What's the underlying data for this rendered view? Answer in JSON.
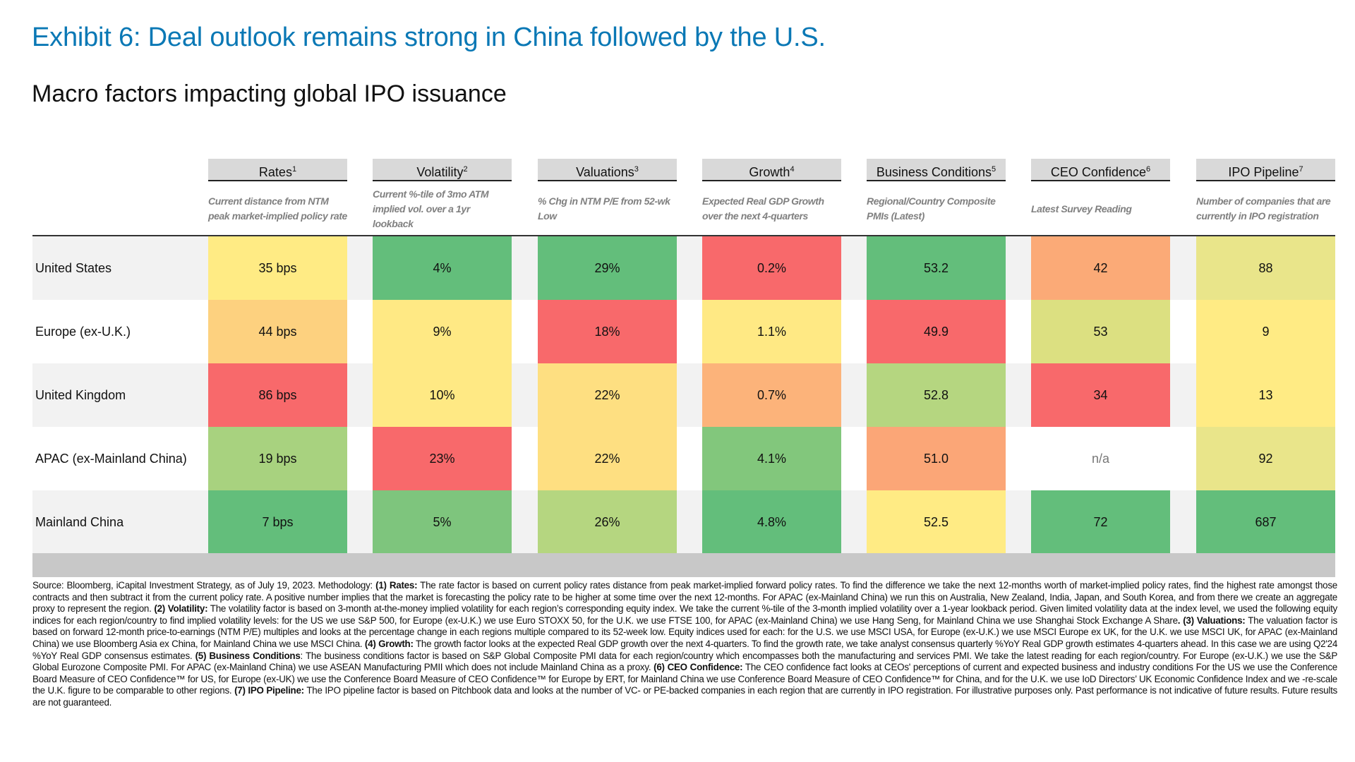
{
  "title": "Exhibit 6: Deal outlook remains strong in China followed by the U.S.",
  "subtitle": "Macro factors impacting global IPO issuance",
  "columns": [
    {
      "label": "Rates",
      "note": "1",
      "desc": "Current distance from NTM peak market-implied policy rate"
    },
    {
      "label": "Volatility",
      "note": "2",
      "desc": "Current %-tile of 3mo ATM implied vol. over a 1yr lookback"
    },
    {
      "label": "Valuations",
      "note": "3",
      "desc": "% Chg in NTM P/E from 52-wk Low"
    },
    {
      "label": "Growth",
      "note": "4",
      "desc": "Expected Real GDP Growth over the next 4-quarters"
    },
    {
      "label": "Business Conditions",
      "note": "5",
      "desc": "Regional/Country Composite PMIs (Latest)"
    },
    {
      "label": "CEO Confidence",
      "note": "6",
      "desc": "Latest Survey Reading"
    },
    {
      "label": "IPO Pipeline",
      "note": "7",
      "desc": "Number of companies that are currently in IPO registration"
    }
  ],
  "rows": [
    {
      "region": "United States",
      "values": [
        "35 bps",
        "4%",
        "29%",
        "0.2%",
        "53.2",
        "42",
        "88"
      ],
      "colors": [
        "#ffeb84",
        "#63be7b",
        "#63be7b",
        "#f8696b",
        "#63be7b",
        "#fbaa77",
        "#e9e58a"
      ]
    },
    {
      "region": "Europe (ex-U.K.)",
      "values": [
        "44 bps",
        "9%",
        "18%",
        "1.1%",
        "49.9",
        "53",
        "9"
      ],
      "colors": [
        "#fdd17f",
        "#ffe984",
        "#f8696b",
        "#ffe984",
        "#f8696b",
        "#dce081",
        "#ffeb84"
      ]
    },
    {
      "region": "United Kingdom",
      "values": [
        "86 bps",
        "10%",
        "22%",
        "0.7%",
        "52.8",
        "34",
        "13"
      ],
      "colors": [
        "#f8696b",
        "#ffe984",
        "#fedf81",
        "#fcb37a",
        "#b5d680",
        "#f8696b",
        "#ffeb84"
      ]
    },
    {
      "region": "APAC (ex-Mainland China)",
      "values": [
        "19 bps",
        "23%",
        "22%",
        "4.1%",
        "51.0",
        "n/a",
        "92"
      ],
      "colors": [
        "#a8d27f",
        "#f8696b",
        "#fedf81",
        "#82c77c",
        "#fba677",
        "",
        "#e9e58a"
      ]
    },
    {
      "region": "Mainland China",
      "values": [
        "7 bps",
        "5%",
        "26%",
        "4.8%",
        "52.5",
        "72",
        "687"
      ],
      "colors": [
        "#63be7b",
        "#7ec57d",
        "#b5d680",
        "#63be7b",
        "#ffeb84",
        "#63be7b",
        "#63be7b"
      ]
    }
  ],
  "footnote": [
    {
      "text": "Source: Bloomberg, iCapital Investment Strategy, as of July 19, 2023. Methodology: ",
      "bold": false
    },
    {
      "text": "(1) Rates:",
      "bold": true
    },
    {
      "text": " The rate factor is based on current policy rates distance from peak market-implied forward policy rates. To find the difference we take the next 12-months worth of market-implied policy rates, find the highest rate amongst those contracts and then subtract it from the current policy rate. A positive number implies that the market is forecasting the policy rate to be higher at some time over the next 12-months. For APAC (ex-Mainland China) we run this on Australia, New Zealand, India, Japan, and South Korea, and from there we create an aggregate proxy to represent the region. ",
      "bold": false
    },
    {
      "text": "(2) Volatility:",
      "bold": true
    },
    {
      "text": " The volatility factor is based on 3-month at-the-money implied volatility for each region’s corresponding equity index. We take the current %-tile of the 3-month implied volatility over a 1-year lookback period. Given limited volatility data at the index level, we used the following equity indices for each region/country to find implied volatility levels: for the US we use S&P 500, for Europe (ex-U.K.) we use Euro STOXX 50, for the U.K. we use FTSE 100, for APAC (ex-Mainland China) we use Hang Seng, for Mainland China we use Shanghai Stock Exchange A Share",
      "bold": false
    },
    {
      "text": ". (3) Valuations:",
      "bold": true
    },
    {
      "text": " The valuation factor is based on forward 12-month price-to-earnings (NTM P/E) multiples and looks at the percentage change in each regions multiple compared to its 52-week low. Equity indices used for each: for the U.S. we use MSCI USA, for Europe (ex-U.K.) we use MSCI Europe ex UK, for the U.K. we use MSCI UK, for APAC (ex-Mainland China) we use Bloomberg Asia ex China, for Mainland China we use MSCI China. ",
      "bold": false
    },
    {
      "text": "(4) Growth:",
      "bold": true
    },
    {
      "text": " The growth factor looks at the expected Real GDP growth over the next 4-quarters. To find the growth rate, we take analyst consensus quarterly %YoY Real GDP growth estimates 4-quarters ahead. In this case we are using Q2'24 %YoY Real GDP consensus estimates. ",
      "bold": false
    },
    {
      "text": "(5) Business Conditions",
      "bold": true
    },
    {
      "text": ": The business conditions factor is based on S&P Global Composite PMI data for each region/country which encompasses both the manufacturing and services PMI. We take the latest reading for each region/country. For Europe (ex-U.K.) we use the S&P Global Eurozone Composite PMI. For APAC (ex-Mainland China) we use ASEAN Manufacturing PMII which does not include Mainland China as a proxy. ",
      "bold": false
    },
    {
      "text": "(6) CEO Confidence:",
      "bold": true
    },
    {
      "text": " The CEO confidence fact looks at CEOs' perceptions of current and expected business and industry conditions For the US we use the Conference Board Measure of CEO Confidence™ for US, for Europe (ex-UK) we use the Conference Board Measure of CEO Confidence™ for Europe by ERT, for Mainland China we use Conference Board Measure of CEO Confidence™ for China, and for the U.K. we use IoD Directors’ UK Economic Confidence Index and we -re-scale the U.K. figure to be comparable to other regions. ",
      "bold": false
    },
    {
      "text": "(7) IPO Pipeline:",
      "bold": true
    },
    {
      "text": " The IPO pipeline factor is based on Pitchbook data and looks at the number of VC- or PE-backed companies in each region that are currently in IPO registration. For illustrative purposes only. Past performance is not indicative of future results. Future results are not guaranteed.",
      "bold": false
    }
  ]
}
